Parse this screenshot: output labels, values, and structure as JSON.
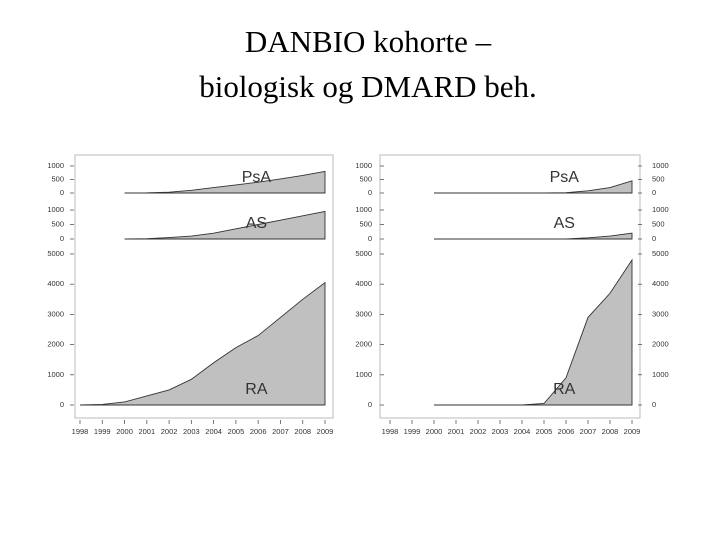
{
  "slide": {
    "title_lines": [
      "DANBIO kohorte –",
      "biologisk og DMARD beh."
    ]
  },
  "chart_data": [
    {
      "type": "area",
      "label": "PsA",
      "color": "#c0c0c0",
      "x": [
        1998,
        1999,
        2000,
        2001,
        2002,
        2003,
        2004,
        2005,
        2006,
        2007,
        2008,
        2009
      ],
      "values": [
        null,
        null,
        0,
        5,
        30,
        100,
        200,
        300,
        400,
        520,
        650,
        800
      ],
      "xlim": [
        1998,
        2009
      ],
      "ylim": [
        0,
        1000
      ],
      "yticks": [
        0,
        500,
        1000
      ],
      "ytick_sides": [
        "left"
      ]
    },
    {
      "type": "area",
      "label": "AS",
      "color": "#c0c0c0",
      "x": [
        1998,
        1999,
        2000,
        2001,
        2002,
        2003,
        2004,
        2005,
        2006,
        2007,
        2008,
        2009
      ],
      "values": [
        null,
        null,
        0,
        10,
        50,
        100,
        200,
        350,
        500,
        650,
        800,
        950
      ],
      "xlim": [
        1998,
        2009
      ],
      "ylim": [
        0,
        1000
      ],
      "yticks": [
        0,
        500,
        1000
      ],
      "ytick_sides": [
        "left"
      ]
    },
    {
      "type": "area",
      "label": "RA",
      "color": "#c0c0c0",
      "x": [
        1998,
        1999,
        2000,
        2001,
        2002,
        2003,
        2004,
        2005,
        2006,
        2007,
        2008,
        2009
      ],
      "values": [
        0,
        20,
        100,
        300,
        500,
        850,
        1400,
        1900,
        2300,
        2900,
        3500,
        4050
      ],
      "xlim": [
        1998,
        2009
      ],
      "ylim": [
        0,
        5000
      ],
      "yticks": [
        0,
        1000,
        2000,
        3000,
        4000,
        5000
      ],
      "ytick_sides": [
        "left"
      ],
      "xticks": [
        1998,
        1999,
        2000,
        2001,
        2002,
        2003,
        2004,
        2005,
        2006,
        2007,
        2008,
        2009
      ]
    },
    {
      "type": "area",
      "label": "PsA",
      "color": "#c0c0c0",
      "x": [
        1998,
        1999,
        2000,
        2001,
        2002,
        2003,
        2004,
        2005,
        2006,
        2007,
        2008,
        2009
      ],
      "values": [
        null,
        null,
        0,
        0,
        0,
        0,
        0,
        0,
        10,
        80,
        200,
        450
      ],
      "xlim": [
        1998,
        2009
      ],
      "ylim": [
        0,
        1000
      ],
      "yticks": [
        0,
        500,
        1000
      ],
      "ytick_sides": [
        "left",
        "right"
      ]
    },
    {
      "type": "area",
      "label": "AS",
      "color": "#c0c0c0",
      "x": [
        1998,
        1999,
        2000,
        2001,
        2002,
        2003,
        2004,
        2005,
        2006,
        2007,
        2008,
        2009
      ],
      "values": [
        null,
        null,
        0,
        0,
        0,
        0,
        0,
        0,
        0,
        40,
        100,
        200
      ],
      "xlim": [
        1998,
        2009
      ],
      "ylim": [
        0,
        1000
      ],
      "yticks": [
        0,
        500,
        1000
      ],
      "ytick_sides": [
        "left",
        "right"
      ]
    },
    {
      "type": "area",
      "label": "RA",
      "color": "#c0c0c0",
      "x": [
        1998,
        1999,
        2000,
        2001,
        2002,
        2003,
        2004,
        2005,
        2006,
        2007,
        2008,
        2009
      ],
      "values": [
        null,
        null,
        0,
        0,
        0,
        0,
        0,
        50,
        900,
        2900,
        3700,
        4800
      ],
      "xlim": [
        1998,
        2009
      ],
      "ylim": [
        0,
        5000
      ],
      "yticks": [
        0,
        1000,
        2000,
        3000,
        4000,
        5000
      ],
      "ytick_sides": [
        "left",
        "right"
      ],
      "xticks": [
        1998,
        1999,
        2000,
        2001,
        2002,
        2003,
        2004,
        2005,
        2006,
        2007,
        2008,
        2009
      ]
    }
  ]
}
